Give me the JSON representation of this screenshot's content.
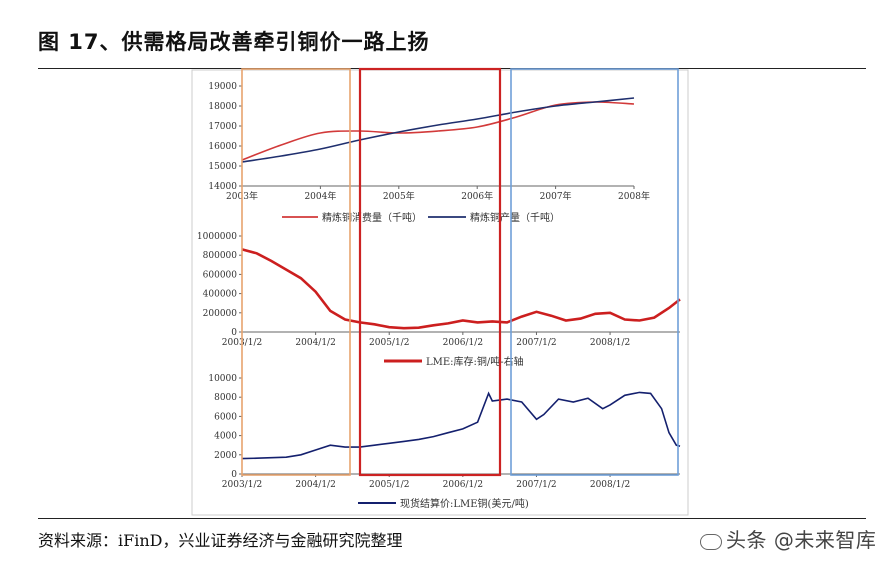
{
  "page": {
    "title": "图 17、供需格局改善牵引铜价一路上扬",
    "source": "资料来源：iFinD，兴业证券经济与金融研究院整理",
    "watermark": "头条 @未来智库"
  },
  "colors": {
    "red": "#d23a3a",
    "navy": "#1f2f6e",
    "lme_red": "#cc1f1f",
    "spot_navy": "#14206e",
    "box_orange": "#e8a36e",
    "box_red": "#cc2222",
    "box_blue": "#6f9fd8"
  },
  "chart_data": [
    {
      "type": "line",
      "xlim": [
        2003,
        2008
      ],
      "ylim": [
        14000,
        19000
      ],
      "x_ticks": [
        "2003年",
        "2004年",
        "2005年",
        "2006年",
        "2007年",
        "2008年"
      ],
      "y_ticks": [
        "14000",
        "15000",
        "16000",
        "17000",
        "18000",
        "19000"
      ],
      "series": [
        {
          "name": "精炼铜消费量（千吨）",
          "x": [
            2003,
            2003.5,
            2004,
            2004.5,
            2005,
            2005.5,
            2006,
            2006.5,
            2007,
            2007.5,
            2008
          ],
          "values": [
            15300,
            16050,
            16650,
            16750,
            16650,
            16750,
            16950,
            17450,
            18050,
            18200,
            18100
          ]
        },
        {
          "name": "精炼铜产量（千吨）",
          "x": [
            2003,
            2003.5,
            2004,
            2004.5,
            2005,
            2005.5,
            2006,
            2006.5,
            2007,
            2007.5,
            2008
          ],
          "values": [
            15200,
            15500,
            15850,
            16300,
            16700,
            17050,
            17350,
            17700,
            18000,
            18200,
            18400
          ]
        }
      ]
    },
    {
      "type": "line",
      "xlim": [
        2003.0,
        2008.95
      ],
      "ylim": [
        0,
        1000000
      ],
      "x_ticks": [
        "2003/1/2",
        "2004/1/2",
        "2005/1/2",
        "2006/1/2",
        "2007/1/2",
        "2008/1/2"
      ],
      "y_ticks": [
        "0",
        "200000",
        "400000",
        "600000",
        "800000",
        "1000000"
      ],
      "series": [
        {
          "name": "LME:库存:铜/吨-右轴",
          "x": [
            2003.0,
            2003.2,
            2003.4,
            2003.6,
            2003.8,
            2004.0,
            2004.2,
            2004.4,
            2004.6,
            2004.8,
            2005.0,
            2005.2,
            2005.4,
            2005.6,
            2005.8,
            2006.0,
            2006.2,
            2006.4,
            2006.6,
            2006.8,
            2007.0,
            2007.2,
            2007.4,
            2007.6,
            2007.8,
            2008.0,
            2008.2,
            2008.4,
            2008.6,
            2008.8,
            2008.95
          ],
          "values": [
            860000,
            820000,
            740000,
            650000,
            560000,
            420000,
            220000,
            130000,
            100000,
            80000,
            50000,
            40000,
            45000,
            70000,
            90000,
            120000,
            100000,
            110000,
            100000,
            160000,
            210000,
            170000,
            120000,
            140000,
            190000,
            200000,
            130000,
            120000,
            150000,
            250000,
            340000
          ]
        }
      ]
    },
    {
      "type": "line",
      "xlim": [
        2003.0,
        2008.95
      ],
      "ylim": [
        0,
        10000
      ],
      "x_ticks": [
        "2003/1/2",
        "2004/1/2",
        "2005/1/2",
        "2006/1/2",
        "2007/1/2",
        "2008/1/2"
      ],
      "y_ticks": [
        "0",
        "2000",
        "4000",
        "6000",
        "8000",
        "10000"
      ],
      "series": [
        {
          "name": "现货结算价:LME铜(美元/吨)",
          "x": [
            2003.0,
            2003.2,
            2003.4,
            2003.6,
            2003.8,
            2004.0,
            2004.2,
            2004.4,
            2004.6,
            2004.8,
            2005.0,
            2005.2,
            2005.4,
            2005.6,
            2005.8,
            2006.0,
            2006.2,
            2006.35,
            2006.4,
            2006.5,
            2006.6,
            2006.8,
            2007.0,
            2007.1,
            2007.3,
            2007.5,
            2007.7,
            2007.9,
            2008.0,
            2008.2,
            2008.4,
            2008.55,
            2008.7,
            2008.8,
            2008.9,
            2008.95
          ],
          "values": [
            1600,
            1650,
            1700,
            1750,
            2000,
            2500,
            3000,
            2800,
            2800,
            3000,
            3200,
            3400,
            3600,
            3900,
            4300,
            4700,
            5400,
            8400,
            7600,
            7700,
            7800,
            7500,
            5700,
            6200,
            7800,
            7500,
            7900,
            6800,
            7200,
            8200,
            8500,
            8400,
            6800,
            4300,
            3000,
            2900
          ]
        }
      ]
    }
  ]
}
